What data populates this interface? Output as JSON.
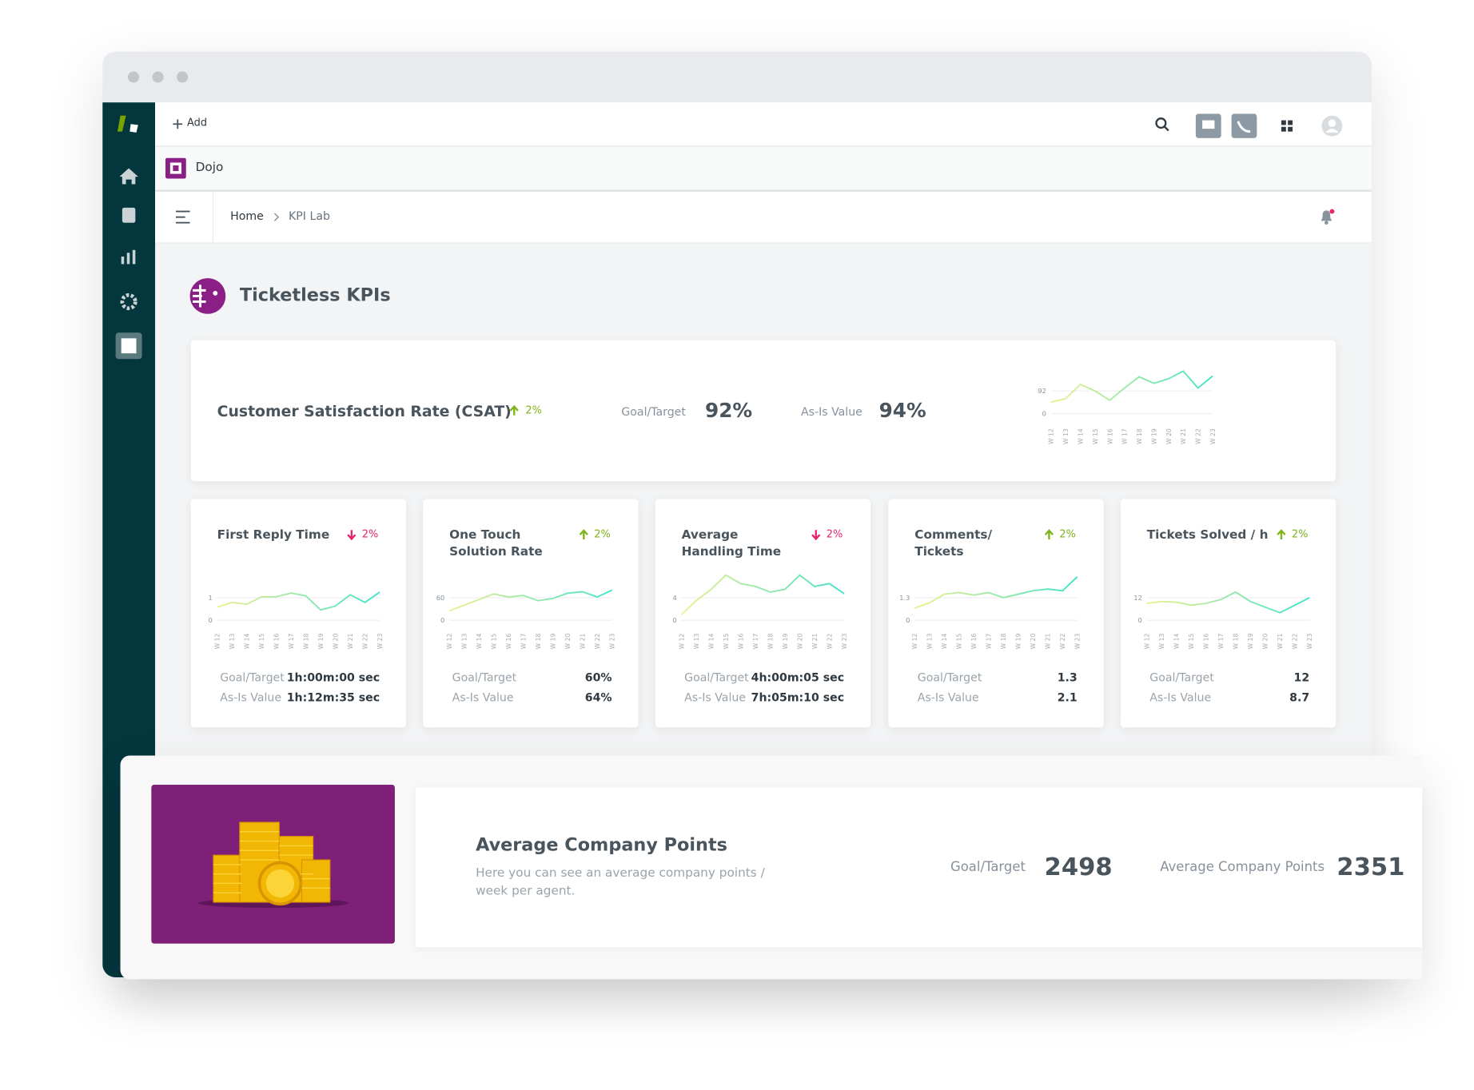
{
  "topbar": {
    "add": "Add"
  },
  "brand": "Dojo",
  "breadcrumb": [
    "Home",
    "KPI Lab"
  ],
  "page_title": "Ticketless KPIs",
  "csat": {
    "title": "Customer Satisfaction Rate (CSAT)",
    "change": "2%",
    "direction": "up",
    "change_color": "#7cb518",
    "goal_label": "Goal/Target",
    "goal_value": "92%",
    "asis_label": "As-Is Value",
    "asis_value": "94%",
    "chart": {
      "type": "line",
      "categories": [
        "W 12",
        "W 13",
        "W 14",
        "W 15",
        "W 16",
        "W 17",
        "W 18",
        "W 19",
        "W 20",
        "W 21",
        "W 22",
        "W 23"
      ],
      "values": [
        46,
        61,
        119,
        92,
        54,
        104,
        150,
        123,
        142,
        173,
        104,
        153
      ],
      "ylim": [
        0,
        184
      ],
      "yticks": [
        0,
        92
      ],
      "colors": [
        "#eef08c",
        "#3fe3c8"
      ]
    }
  },
  "cards": [
    {
      "title": "First Reply Time",
      "change": "2%",
      "direction": "down",
      "change_color": "#e5246f",
      "goal_label": "Goal/Target",
      "goal_value": "1h:00m:00 sec",
      "asis_label": "As-Is Value",
      "asis_value": "1h:12m:35 sec",
      "chart": {
        "type": "line",
        "categories": [
          "W 12",
          "W 13",
          "W 14",
          "W 15",
          "W 16",
          "W 17",
          "W 18",
          "W 19",
          "W 20",
          "W 21",
          "W 22",
          "W 23"
        ],
        "values": [
          0.58,
          0.79,
          0.71,
          1.04,
          1.04,
          1.21,
          1.08,
          0.46,
          0.63,
          1.13,
          0.79,
          1.25
        ],
        "ylim": [
          0,
          2
        ],
        "yticks": [
          0,
          1
        ],
        "colors": [
          "#eef08c",
          "#3fe3c8"
        ]
      }
    },
    {
      "title": "One Touch Solution Rate",
      "change": "2%",
      "direction": "up",
      "change_color": "#7cb518",
      "goal_label": "Goal/Target",
      "goal_value": "60%",
      "asis_label": "As-Is Value",
      "asis_value": "64%",
      "chart": {
        "type": "line",
        "categories": [
          "W 12",
          "W 13",
          "W 14",
          "W 15",
          "W 16",
          "W 17",
          "W 18",
          "W 19",
          "W 20",
          "W 21",
          "W 22",
          "W 23"
        ],
        "values": [
          25,
          40,
          55,
          70,
          62,
          66,
          52,
          58,
          72,
          76,
          62,
          80
        ],
        "ylim": [
          0,
          120
        ],
        "yticks": [
          0,
          60
        ],
        "colors": [
          "#eef08c",
          "#3fe3c8"
        ]
      }
    },
    {
      "title": "Average Handling Time",
      "change": "2%",
      "direction": "down",
      "change_color": "#e5246f",
      "goal_label": "Goal/Target",
      "goal_value": "4h:00m:05 sec",
      "asis_label": "As-Is Value",
      "asis_value": "7h:05m:10 sec",
      "chart": {
        "type": "line",
        "categories": [
          "W 12",
          "W 13",
          "W 14",
          "W 15",
          "W 16",
          "W 17",
          "W 18",
          "W 19",
          "W 20",
          "W 21",
          "W 22",
          "W 23"
        ],
        "values": [
          1,
          3.5,
          5.5,
          8,
          6.5,
          6,
          5,
          5.5,
          8,
          6,
          6.5,
          4.7
        ],
        "ylim": [
          0,
          8
        ],
        "yticks": [
          0,
          4
        ],
        "colors": [
          "#eef08c",
          "#3fe3c8"
        ]
      }
    },
    {
      "title": "Comments/ Tickets",
      "change": "2%",
      "direction": "up",
      "change_color": "#7cb518",
      "goal_label": "Goal/Target",
      "goal_value": 1.3,
      "asis_label": "As-Is Value",
      "asis_value": 2.1,
      "chart": {
        "type": "line",
        "categories": [
          "W 12",
          "W 13",
          "W 14",
          "W 15",
          "W 16",
          "W 17",
          "W 18",
          "W 19",
          "W 20",
          "W 21",
          "W 22",
          "W 23"
        ],
        "values": [
          0.7,
          1.0,
          1.5,
          1.6,
          1.45,
          1.6,
          1.3,
          1.5,
          1.7,
          1.8,
          1.7,
          2.5
        ],
        "ylim": [
          0,
          2.6
        ],
        "yticks": [
          0,
          1.3
        ],
        "colors": [
          "#eef08c",
          "#3fe3c8"
        ]
      }
    },
    {
      "title": "Tickets Solved / h",
      "change": "2%",
      "direction": "up",
      "change_color": "#7cb518",
      "goal_label": "Goal/Target",
      "goal_value": 12,
      "asis_label": "As-Is Value",
      "asis_value": 8.7,
      "chart": {
        "type": "line",
        "categories": [
          "W 12",
          "W 13",
          "W 14",
          "W 15",
          "W 16",
          "W 17",
          "W 18",
          "W 19",
          "W 20",
          "W 21",
          "W 22",
          "W 23"
        ],
        "values": [
          9,
          10,
          9.6,
          8,
          9,
          11,
          15,
          10,
          7,
          4,
          8,
          12
        ],
        "ylim": [
          0,
          24
        ],
        "yticks": [
          0,
          12
        ],
        "colors": [
          "#eef08c",
          "#3fe3c8"
        ]
      }
    }
  ],
  "points": {
    "title": "Average Company Points",
    "description": "Here you can see an average company points / week per agent.",
    "goal_label": "Goal/Target",
    "goal_value": 2498,
    "avg_label": "Average Company Points",
    "avg_value": 2351
  }
}
